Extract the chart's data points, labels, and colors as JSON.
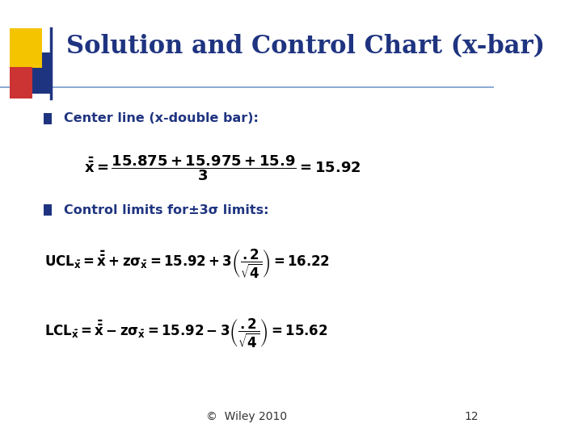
{
  "title": "Solution and Control Chart (x-bar)",
  "title_color": "#1F3480",
  "bg_color": "#FFFFFF",
  "bullet_color": "#1F3480",
  "footer_text": "©  Wiley 2010",
  "page_number": "12",
  "bullet1": "Center line (x-double bar):",
  "bullet2": "Control limits for±3σ limits:",
  "yellow_color": "#F5C400",
  "red_color": "#CC3333",
  "blue_color": "#1F3480",
  "line_color": "#7799CC",
  "foot_color": "#333333",
  "title_fontsize": 22,
  "bullet_fontsize": 11.5,
  "formula_fontsize": 13,
  "footer_fontsize": 10
}
